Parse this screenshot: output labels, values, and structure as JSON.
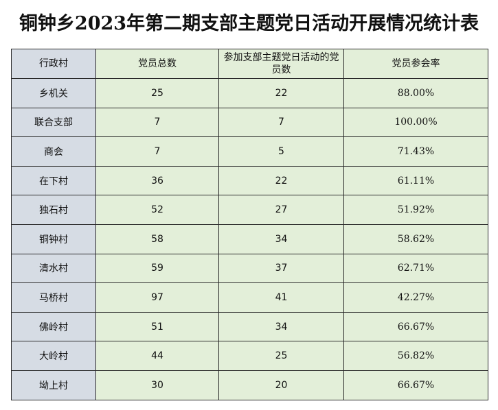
{
  "title": "铜钟乡2023年第二期支部主题党日活动开展情况统计表",
  "headers": {
    "village": "行政村",
    "total_members": "党员总数",
    "participants": "参加支部主题党日活动的党员数",
    "rate": "党员参会率"
  },
  "rows": [
    {
      "village": "乡机关",
      "total": "25",
      "participants": "22",
      "rate": "88.00%"
    },
    {
      "village": "联合支部",
      "total": "7",
      "participants": "7",
      "rate": "100.00%"
    },
    {
      "village": "商会",
      "total": "7",
      "participants": "5",
      "rate": "71.43%"
    },
    {
      "village": "在下村",
      "total": "36",
      "participants": "22",
      "rate": "61.11%"
    },
    {
      "village": "独石村",
      "total": "52",
      "participants": "27",
      "rate": "51.92%"
    },
    {
      "village": "铜钟村",
      "total": "58",
      "participants": "34",
      "rate": "58.62%"
    },
    {
      "village": "清水村",
      "total": "59",
      "participants": "37",
      "rate": "62.71%"
    },
    {
      "village": "马桥村",
      "total": "97",
      "participants": "41",
      "rate": "42.27%"
    },
    {
      "village": "佛岭村",
      "total": "51",
      "participants": "34",
      "rate": "66.67%"
    },
    {
      "village": "大岭村",
      "total": "44",
      "participants": "25",
      "rate": "56.82%"
    },
    {
      "village": "坳上村",
      "total": "30",
      "participants": "20",
      "rate": "66.67%"
    }
  ]
}
